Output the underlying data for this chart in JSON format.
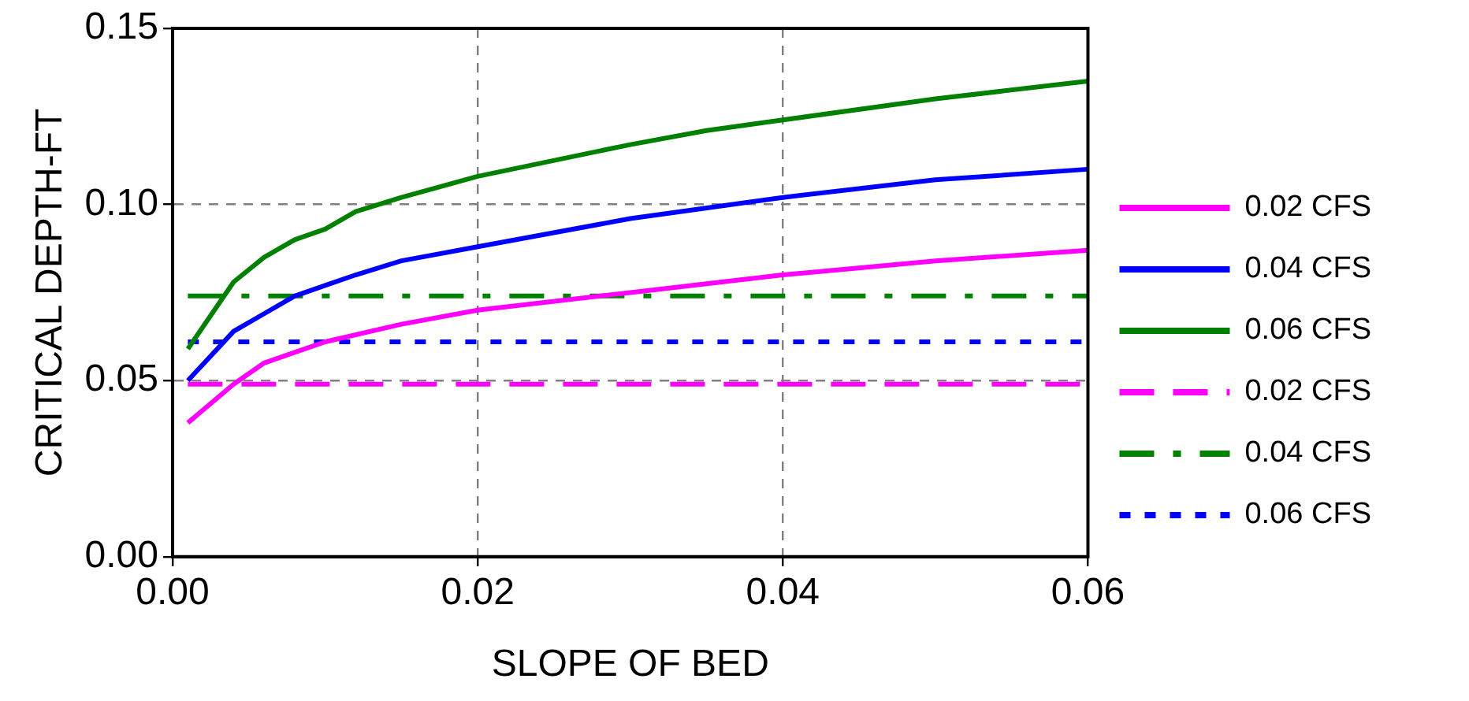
{
  "chart_data": {
    "type": "line",
    "xlabel": "SLOPE OF BED",
    "ylabel": "CRITICAL DEPTH-FT",
    "xlim": [
      0,
      0.06
    ],
    "ylim": [
      0,
      0.15
    ],
    "xticks": [
      {
        "value": 0,
        "label": "0.00"
      },
      {
        "value": 0.02,
        "label": "0.02"
      },
      {
        "value": 0.04,
        "label": "0.04"
      },
      {
        "value": 0.06,
        "label": "0.06"
      }
    ],
    "yticks": [
      {
        "value": 0,
        "label": "0.00"
      },
      {
        "value": 0.05,
        "label": "0.05"
      },
      {
        "value": 0.1,
        "label": "0.10"
      },
      {
        "value": 0.15,
        "label": "0.15"
      }
    ],
    "grid": true,
    "legend": "right",
    "marker": "none",
    "series": [
      {
        "name": "0.02 CFS",
        "color": "#ff00ff",
        "line_style": "solid",
        "x": [
          0.001,
          0.004,
          0.006,
          0.008,
          0.01,
          0.015,
          0.02,
          0.03,
          0.04,
          0.05,
          0.06
        ],
        "values": [
          0.038,
          0.049,
          0.055,
          0.058,
          0.061,
          0.066,
          0.07,
          0.075,
          0.08,
          0.084,
          0.087
        ]
      },
      {
        "name": "0.04 CFS",
        "color": "#0000ff",
        "line_style": "solid",
        "x": [
          0.001,
          0.004,
          0.006,
          0.008,
          0.01,
          0.012,
          0.015,
          0.02,
          0.03,
          0.04,
          0.05,
          0.06
        ],
        "values": [
          0.05,
          0.064,
          0.069,
          0.074,
          0.077,
          0.08,
          0.084,
          0.088,
          0.096,
          0.102,
          0.107,
          0.11
        ]
      },
      {
        "name": "0.06 CFS",
        "color": "#008000",
        "line_style": "solid",
        "x": [
          0.001,
          0.004,
          0.006,
          0.008,
          0.01,
          0.012,
          0.015,
          0.02,
          0.03,
          0.035,
          0.04,
          0.05,
          0.06
        ],
        "values": [
          0.059,
          0.078,
          0.085,
          0.09,
          0.093,
          0.098,
          0.102,
          0.108,
          0.117,
          0.121,
          0.124,
          0.13,
          0.135
        ]
      },
      {
        "name": "0.02 CFS",
        "color": "#ff00ff",
        "line_style": "dashed",
        "x": [
          0.001,
          0.06
        ],
        "values": [
          0.049,
          0.049
        ]
      },
      {
        "name": "0.04 CFS",
        "color": "#008000",
        "line_style": "dashdot",
        "x": [
          0.001,
          0.06
        ],
        "values": [
          0.074,
          0.074
        ]
      },
      {
        "name": "0.06 CFS",
        "color": "#0000ff",
        "line_style": "dotted",
        "x": [
          0.001,
          0.06
        ],
        "values": [
          0.061,
          0.061
        ]
      }
    ]
  }
}
